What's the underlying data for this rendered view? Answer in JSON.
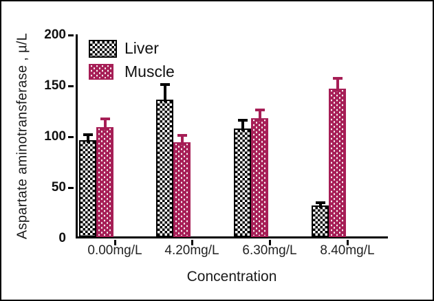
{
  "figure": {
    "background": "#ffffff",
    "frame_border_color": "#000000"
  },
  "chart_data": {
    "type": "bar",
    "title": "",
    "xlabel": "Concentration",
    "ylabel": "Aspartate aminotransferase , µ/L",
    "ylim": [
      0,
      200
    ],
    "yticks": [
      0,
      50,
      100,
      150,
      200
    ],
    "categories": [
      "0.00mg/L",
      "4.20mg/L",
      "6.30mg/L",
      "8.40mg/L"
    ],
    "series": [
      {
        "name": "Liver",
        "color": "#000000",
        "pattern": "checkerboard",
        "values": [
          95,
          135,
          107,
          31
        ],
        "errors": [
          6,
          15,
          8,
          3
        ]
      },
      {
        "name": "Muscle",
        "color": "#A61E56",
        "pattern": "brick-dash",
        "values": [
          108,
          93,
          117,
          146
        ],
        "errors": [
          8,
          7,
          8,
          10
        ]
      }
    ],
    "error_bars": "upper-only",
    "grid": false,
    "legend_position": "top-left-inside"
  }
}
